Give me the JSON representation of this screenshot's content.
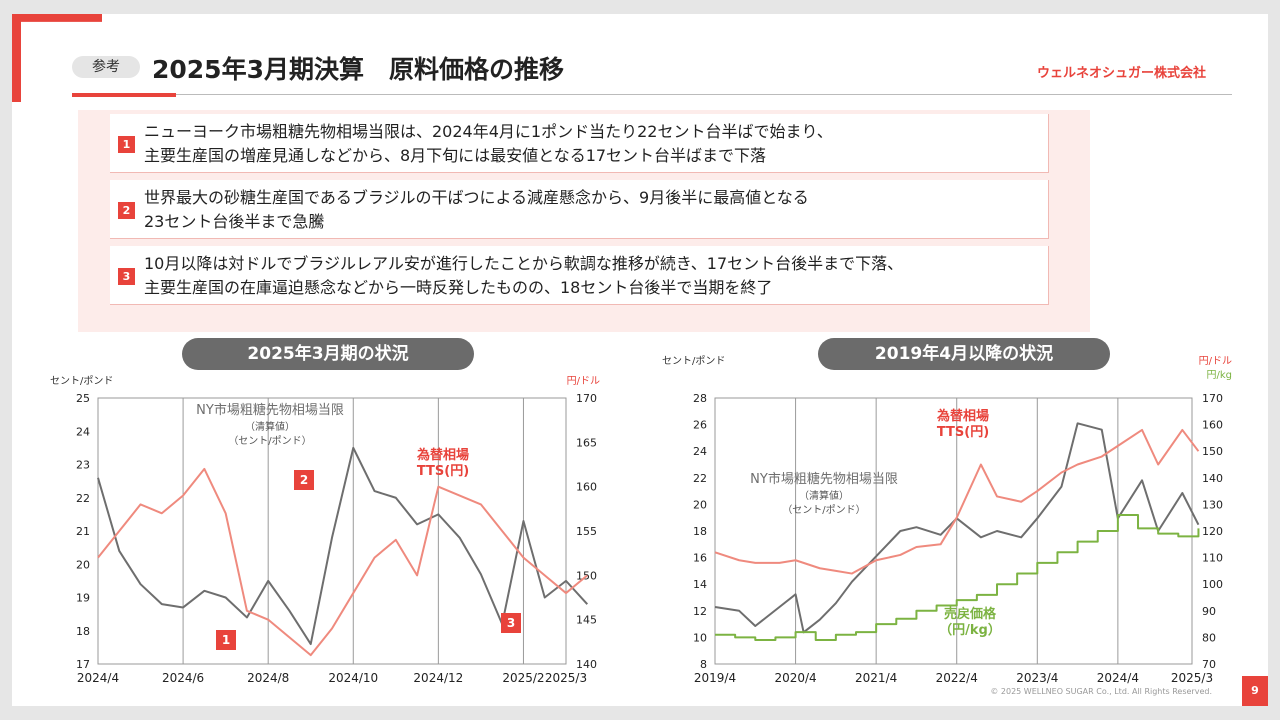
{
  "header": {
    "badge": "参考",
    "title": "2025年3月期決算　原料価格の推移",
    "company": "ウェルネオシュガー株式会社"
  },
  "points": [
    {
      "num": "1",
      "lines": [
        "ニューヨーク市場粗糖先物相場当限は、2024年4月に1ポンド当たり22セント台半ばで始まり、",
        "主要生産国の増産見通しなどから、8月下旬には最安値となる17セント台半ばまで下落"
      ]
    },
    {
      "num": "2",
      "lines": [
        "世界最大の砂糖生産国であるブラジルの干ばつによる減産懸念から、9月後半に最高値となる",
        "23セント台後半まで急騰"
      ]
    },
    {
      "num": "3",
      "lines": [
        "10月以降は対ドルでブラジルレアル安が進行したことから軟調な推移が続き、17セント台後半まで下落、",
        "主要生産国の在庫逼迫懸念などから一時反発したものの、18セント台後半で当期を終了"
      ]
    }
  ],
  "footer": {
    "copyright": "© 2025 WELLNEO SUGAR Co., Ltd. All Rights Reserved.",
    "page": "9"
  },
  "colors": {
    "accent": "#e8433b",
    "sugar": "#6e6e6e",
    "fx": "#ef8a7e",
    "sell": "#7cb342"
  },
  "chart_data": [
    {
      "type": "line",
      "title": "2025年3月期の状況",
      "left_unit": "セント/ポンド",
      "right_unit": "円/ドル",
      "ylim": [
        17,
        25
      ],
      "y2lim": [
        140,
        170
      ],
      "y_ticks": [
        "25",
        "24",
        "23",
        "22",
        "21",
        "20",
        "19",
        "18",
        "17"
      ],
      "y2_ticks": [
        "170",
        "165",
        "160",
        "155",
        "150",
        "145",
        "140"
      ],
      "x_ticks": [
        "2024/4",
        "2024/6",
        "2024/8",
        "2024/10",
        "2024/12",
        "2025/2",
        "2025/3"
      ],
      "series": [
        {
          "name": "NY市場粗糖先物相場当限",
          "sub": [
            "（清算値）",
            "（セント/ポンド）"
          ],
          "axis": "left",
          "x": [
            0,
            0.5,
            1,
            1.5,
            2,
            2.5,
            3,
            3.5,
            4,
            4.5,
            5,
            5.5,
            6,
            6.5,
            7,
            7.5,
            8,
            8.5,
            9,
            9.5,
            10,
            10.5,
            11,
            11.5
          ],
          "values": [
            22.6,
            20.4,
            19.4,
            18.8,
            18.7,
            19.2,
            19.0,
            18.4,
            19.5,
            18.6,
            17.6,
            20.8,
            23.5,
            22.2,
            22.0,
            21.2,
            21.5,
            20.8,
            19.7,
            18.2,
            21.3,
            19.0,
            19.5,
            18.8
          ]
        },
        {
          "name": "為替相場",
          "sub": [
            "TTS(円)"
          ],
          "axis": "right",
          "x": [
            0,
            0.5,
            1,
            1.5,
            2,
            2.5,
            3,
            3.5,
            4,
            4.5,
            5,
            5.5,
            6,
            6.5,
            7,
            7.5,
            8,
            8.5,
            9,
            9.5,
            10,
            10.5,
            11,
            11.5
          ],
          "values": [
            152,
            155,
            158,
            157,
            159,
            162,
            157,
            146,
            145,
            143,
            141,
            144,
            148,
            152,
            154,
            150,
            160,
            159,
            158,
            155,
            152,
            150,
            148,
            150
          ]
        }
      ],
      "annotations": [
        "1",
        "2",
        "3"
      ]
    },
    {
      "type": "line",
      "title": "2019年4月以降の状況",
      "left_unit": "セント/ポンド",
      "right_unit": "円/ドル",
      "right_unit2": "円/kg",
      "ylim": [
        8,
        29
      ],
      "y2lim": [
        70,
        170
      ],
      "y_ticks": [
        "28",
        "26",
        "24",
        "22",
        "20",
        "18",
        "16",
        "14",
        "12",
        "10",
        "8"
      ],
      "y2_ticks": [
        "170",
        "160",
        "150",
        "140",
        "130",
        "120",
        "110",
        "100",
        "90",
        "80",
        "70"
      ],
      "x_ticks": [
        "2019/4",
        "2020/4",
        "2021/4",
        "2022/4",
        "2023/4",
        "2024/4",
        "2025/3"
      ],
      "series": [
        {
          "name": "NY市場粗糖先物相場当限",
          "sub": [
            "（清算値）",
            "（セント/ポンド）"
          ],
          "axis": "left",
          "x": [
            0,
            0.3,
            0.5,
            0.8,
            1.0,
            1.1,
            1.3,
            1.5,
            1.7,
            2.0,
            2.3,
            2.5,
            2.8,
            3.0,
            3.3,
            3.5,
            3.8,
            4.0,
            4.3,
            4.5,
            4.8,
            5.0,
            5.3,
            5.5,
            5.8,
            6.0
          ],
          "values": [
            12.5,
            12.2,
            11.0,
            12.5,
            13.5,
            10.5,
            11.5,
            12.8,
            14.5,
            16.5,
            18.5,
            18.8,
            18.2,
            19.5,
            18.0,
            18.5,
            18.0,
            19.5,
            22.0,
            27.0,
            26.5,
            19.5,
            22.5,
            18.5,
            21.5,
            19.0
          ]
        },
        {
          "name": "為替相場",
          "sub": [
            "TTS(円)"
          ],
          "axis": "right",
          "x": [
            0,
            0.3,
            0.5,
            0.8,
            1.0,
            1.3,
            1.5,
            1.7,
            2.0,
            2.3,
            2.5,
            2.8,
            3.0,
            3.3,
            3.5,
            3.8,
            4.0,
            4.3,
            4.5,
            4.8,
            5.0,
            5.3,
            5.5,
            5.8,
            6.0
          ],
          "values": [
            112,
            109,
            108,
            108,
            109,
            106,
            105,
            104,
            109,
            111,
            114,
            115,
            125,
            145,
            133,
            131,
            135,
            142,
            145,
            148,
            152,
            158,
            145,
            158,
            150
          ]
        },
        {
          "name": "売戻価格",
          "sub": [
            "（円/kg）"
          ],
          "axis": "right",
          "step": true,
          "x": [
            0,
            0.25,
            0.5,
            0.75,
            1.0,
            1.25,
            1.5,
            1.75,
            2.0,
            2.25,
            2.5,
            2.75,
            3.0,
            3.25,
            3.5,
            3.75,
            4.0,
            4.25,
            4.5,
            4.75,
            5.0,
            5.25,
            5.5,
            5.75,
            6.0
          ],
          "values": [
            81,
            80,
            79,
            80,
            82,
            79,
            81,
            82,
            85,
            87,
            90,
            92,
            94,
            96,
            100,
            104,
            108,
            112,
            116,
            120,
            126,
            121,
            119,
            118,
            121
          ]
        }
      ]
    }
  ]
}
